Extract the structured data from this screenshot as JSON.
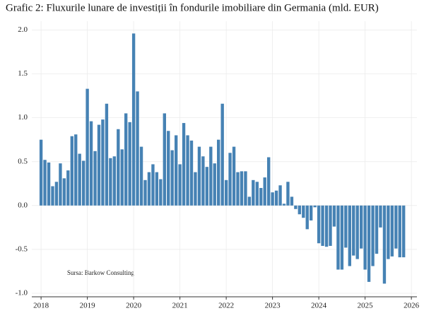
{
  "chart_data": {
    "type": "bar",
    "title": "Grafic 2: Fluxurile lunare de investiții în fondurile imobiliare din Germania (mld. EUR)",
    "annotation": "Sursa: Barkow Consulting",
    "color": "#4682b4",
    "grid": true,
    "x": [
      2018,
      2018.083,
      2018.167,
      2018.25,
      2018.333,
      2018.417,
      2018.5,
      2018.583,
      2018.667,
      2018.75,
      2018.833,
      2018.917,
      2019,
      2019.083,
      2019.167,
      2019.25,
      2019.333,
      2019.417,
      2019.5,
      2019.583,
      2019.667,
      2019.75,
      2019.833,
      2019.917,
      2020,
      2020.083,
      2020.167,
      2020.25,
      2020.333,
      2020.417,
      2020.5,
      2020.583,
      2020.667,
      2020.75,
      2020.833,
      2020.917,
      2021,
      2021.083,
      2021.167,
      2021.25,
      2021.333,
      2021.417,
      2021.5,
      2021.583,
      2021.667,
      2021.75,
      2021.833,
      2021.917,
      2022,
      2022.083,
      2022.167,
      2022.25,
      2022.333,
      2022.417,
      2022.5,
      2022.583,
      2022.667,
      2022.75,
      2022.833,
      2022.917,
      2023,
      2023.083,
      2023.167,
      2023.25,
      2023.333,
      2023.417,
      2023.5,
      2023.583,
      2023.667,
      2023.75,
      2023.833,
      2023.917,
      2024,
      2024.083,
      2024.167,
      2024.25,
      2024.333,
      2024.417,
      2024.5,
      2024.583,
      2024.667,
      2024.75,
      2024.833,
      2024.917,
      2025,
      2025.083,
      2025.167,
      2025.25,
      2025.333,
      2025.417,
      2025.5,
      2025.583,
      2025.667,
      2025.75,
      2025.833
    ],
    "values": [
      0.75,
      0.52,
      0.49,
      0.22,
      0.27,
      0.48,
      0.31,
      0.4,
      0.79,
      0.81,
      0.59,
      0.51,
      1.33,
      0.96,
      0.62,
      0.92,
      0.98,
      1.16,
      0.54,
      0.56,
      0.87,
      0.64,
      1.05,
      0.95,
      1.96,
      1.3,
      0.67,
      0.29,
      0.38,
      0.47,
      0.38,
      0.3,
      1.05,
      0.85,
      0.63,
      0.8,
      0.47,
      0.94,
      0.8,
      0.74,
      0.38,
      0.67,
      0.56,
      0.44,
      0.67,
      0.48,
      0.75,
      1.16,
      0.29,
      0.6,
      0.67,
      0.38,
      0.39,
      0.39,
      0.1,
      0.29,
      0.27,
      0.2,
      0.32,
      0.55,
      0.15,
      0.17,
      0.23,
      0.02,
      0.27,
      0.1,
      -0.04,
      -0.1,
      -0.14,
      -0.27,
      -0.17,
      -0.02,
      -0.43,
      -0.46,
      -0.47,
      -0.46,
      -0.24,
      -0.73,
      -0.73,
      -0.48,
      -0.69,
      -0.57,
      -0.61,
      -0.49,
      -0.73,
      -0.87,
      -0.69,
      -0.55,
      -0.25,
      -0.89,
      -0.61,
      -0.58,
      -0.49,
      -0.59,
      -0.59
    ],
    "xlim": [
      2017.8,
      2026.12
    ],
    "xticks": [
      2018,
      2019,
      2020,
      2021,
      2022,
      2023,
      2024,
      2025,
      2026
    ],
    "ylim": [
      -1.04,
      2.1
    ],
    "yticks": [
      {
        "value": -1,
        "label": "-1.0"
      },
      -0.5,
      {
        "value": 0,
        "label": "0.0"
      },
      0.5,
      {
        "value": 1,
        "label": "1.0"
      },
      1.5,
      {
        "value": 2,
        "label": "2.0"
      }
    ]
  }
}
